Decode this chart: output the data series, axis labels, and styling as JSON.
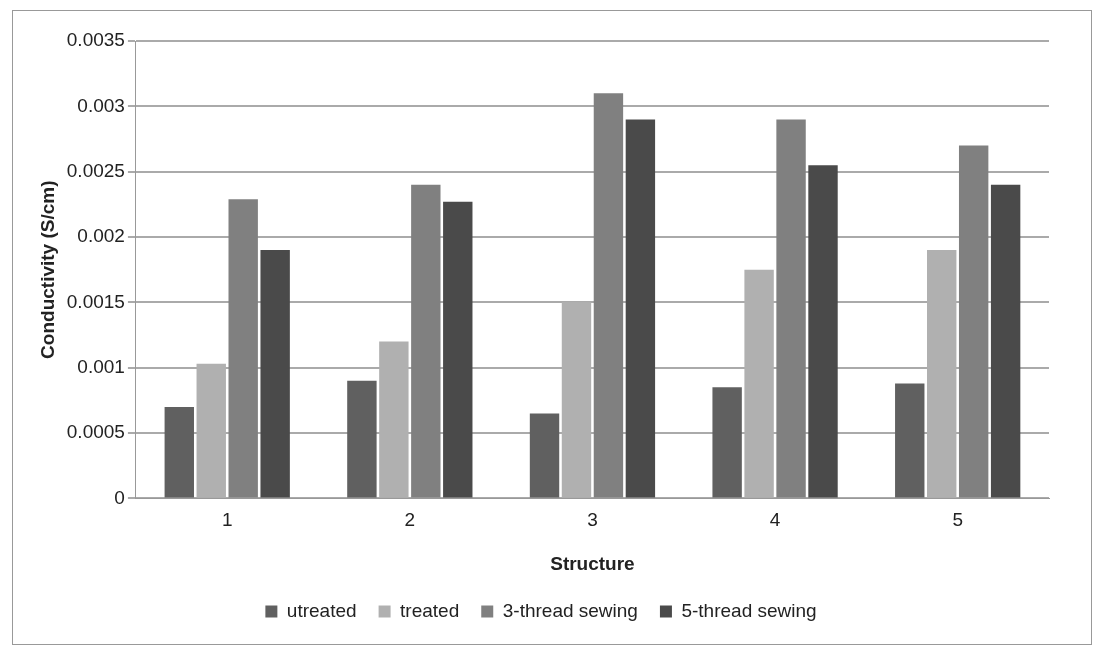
{
  "chart_data": {
    "type": "bar",
    "xlabel": "Structure",
    "ylabel": "Conductivity (S/cm)",
    "categories": [
      "1",
      "2",
      "3",
      "4",
      "5"
    ],
    "series": [
      {
        "name": "utreated",
        "color": "#606060",
        "values": [
          0.0007,
          0.0009,
          0.00065,
          0.00085,
          0.00088
        ]
      },
      {
        "name": "treated",
        "color": "#b0b0b0",
        "values": [
          0.00103,
          0.0012,
          0.0015,
          0.00175,
          0.0019
        ]
      },
      {
        "name": "3-thread sewing",
        "color": "#808080",
        "values": [
          0.00229,
          0.0024,
          0.0031,
          0.0029,
          0.0027
        ]
      },
      {
        "name": "5-thread sewing",
        "color": "#4a4a4a",
        "values": [
          0.0019,
          0.00227,
          0.0029,
          0.00255,
          0.0024
        ]
      }
    ],
    "ylim": [
      0,
      0.0035
    ],
    "yticks": [
      0,
      0.0005,
      0.001,
      0.0015,
      0.002,
      0.0025,
      0.003,
      0.0035
    ],
    "grid": "y",
    "legend": "bottom"
  }
}
